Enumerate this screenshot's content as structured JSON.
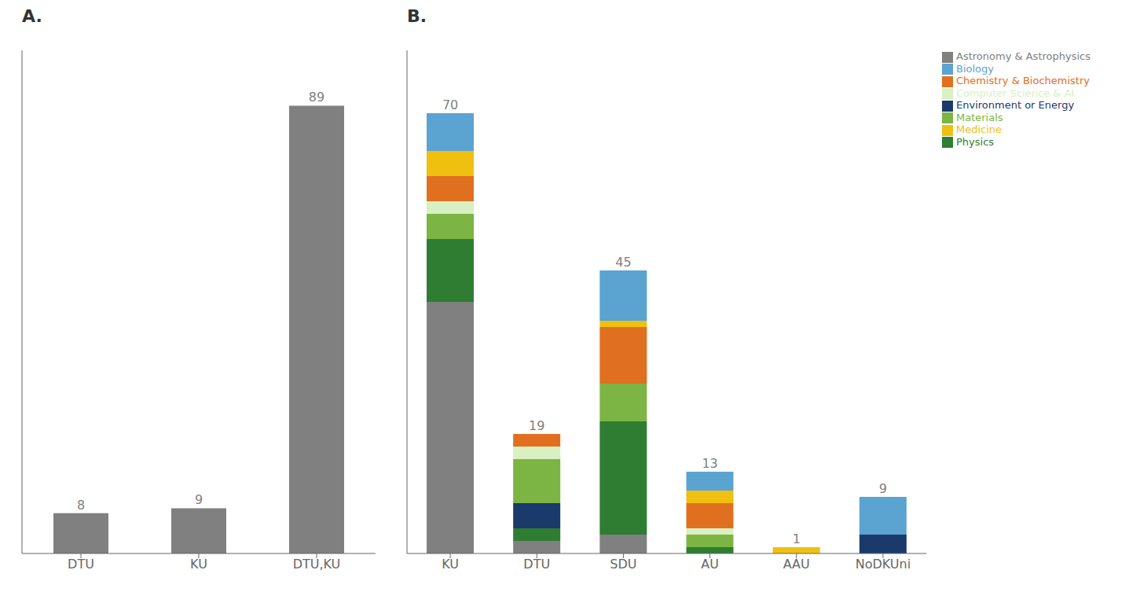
{
  "chart_data": [
    {
      "type": "bar",
      "title": "A.",
      "categories": [
        "DTU",
        "KU",
        "DTU,KU"
      ],
      "values": [
        8,
        9,
        89
      ],
      "color": "#808080",
      "ylim": [
        0,
        100
      ],
      "data_labels": true,
      "tick_labels": "x",
      "grid": false
    },
    {
      "type": "bar",
      "title": "B.",
      "stacked": true,
      "categories": [
        "KU",
        "DTU",
        "SDU",
        "AU",
        "AAU",
        "NoDKUni"
      ],
      "series": [
        {
          "name": "Astronomy & Astrophysics",
          "color": "#808080",
          "values": [
            40,
            2,
            3,
            0,
            0,
            0
          ]
        },
        {
          "name": "Physics",
          "color": "#2e7d32",
          "values": [
            10,
            2,
            18,
            1,
            0,
            0
          ]
        },
        {
          "name": "Environment or Energy",
          "color": "#1a3a6b",
          "values": [
            0,
            4,
            0,
            0,
            0,
            3
          ]
        },
        {
          "name": "Materials",
          "color": "#7cb543",
          "values": [
            4,
            7,
            6,
            2,
            0,
            0
          ]
        },
        {
          "name": "Computer Science & AI",
          "color": "#d9f0c2",
          "values": [
            2,
            2,
            0,
            1,
            0,
            0
          ]
        },
        {
          "name": "Chemistry & Biochemistry",
          "color": "#e07020",
          "values": [
            4,
            2,
            9,
            4,
            0,
            0
          ]
        },
        {
          "name": "Medicine",
          "color": "#f0c010",
          "values": [
            4,
            0,
            1,
            2,
            1,
            0
          ]
        },
        {
          "name": "Biology",
          "color": "#5ba3d0",
          "values": [
            6,
            0,
            8,
            3,
            0,
            6
          ]
        }
      ],
      "totals": [
        70,
        19,
        45,
        13,
        1,
        9
      ],
      "ylim": [
        0,
        80
      ],
      "legend": "upper right",
      "tick_labels": "x",
      "grid": false
    }
  ]
}
